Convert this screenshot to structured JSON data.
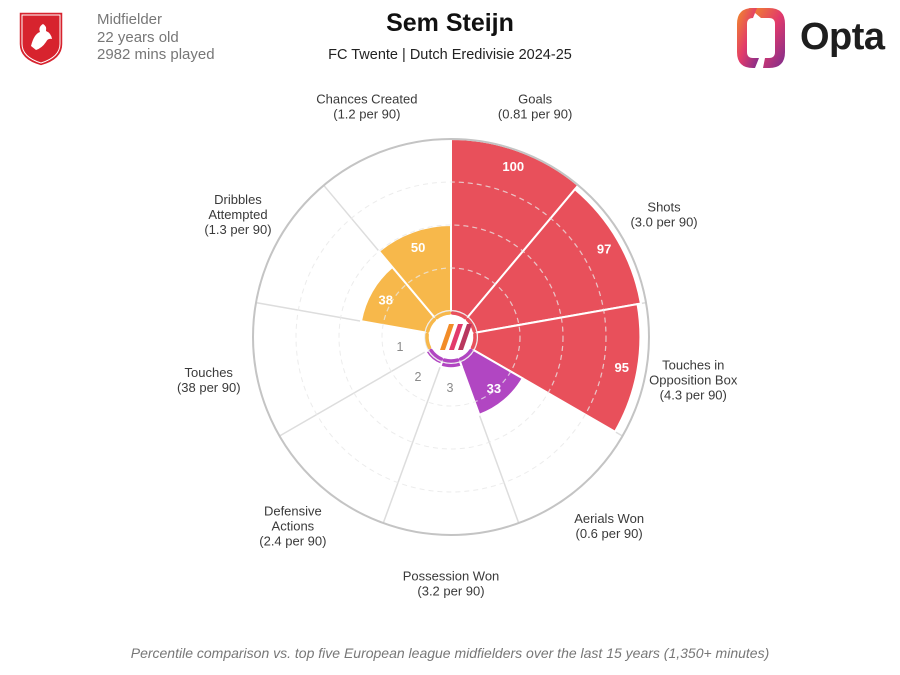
{
  "header": {
    "player_name": "Sem Steijn",
    "club_competition": "FC Twente | Dutch Eredivisie 2024-25",
    "position": "Midfielder",
    "age": "22 years old",
    "minutes": "2982 mins played",
    "brand": "Opta"
  },
  "footnote": "Percentile comparison vs. top five European league midfielders over the last 15 years (1,350+ minutes)",
  "colors": {
    "attacking": "#e8505b",
    "possession": "#f7b84b",
    "defending": "#b146c2",
    "grid": "#dddddd",
    "outer_ring": "#c4c4c4"
  },
  "chart_data": {
    "type": "polar-bar",
    "scale_max": 100,
    "center_ring_labels": [
      "1",
      "2",
      "3"
    ],
    "categories": [
      {
        "label": [
          "Goals",
          "(0.81 per 90)"
        ],
        "value": 100,
        "group": "attacking",
        "show_value": true
      },
      {
        "label": [
          "Shots",
          "(3.0 per 90)"
        ],
        "value": 97,
        "group": "attacking",
        "show_value": true
      },
      {
        "label": [
          "Touches in",
          "Opposition Box",
          "(4.3 per 90)"
        ],
        "value": 95,
        "group": "attacking",
        "show_value": true
      },
      {
        "label": [
          "Aerials Won",
          "(0.6 per 90)"
        ],
        "value": 33,
        "group": "defending",
        "show_value": true
      },
      {
        "label": [
          "Possession Won",
          "(3.2 per 90)"
        ],
        "value": 3,
        "group": "defending",
        "show_value": false
      },
      {
        "label": [
          "Defensive",
          "Actions",
          "(2.4 per 90)"
        ],
        "value": 2,
        "group": "defending",
        "show_value": false
      },
      {
        "label": [
          "Touches",
          "(38 per 90)"
        ],
        "value": 1,
        "group": "possession",
        "show_value": false
      },
      {
        "label": [
          "Dribbles",
          "Attempted",
          "(1.3 per 90)"
        ],
        "value": 38,
        "group": "possession",
        "show_value": true
      },
      {
        "label": [
          "Chances Created",
          "(1.2 per 90)"
        ],
        "value": 50,
        "group": "possession",
        "show_value": true
      }
    ]
  }
}
